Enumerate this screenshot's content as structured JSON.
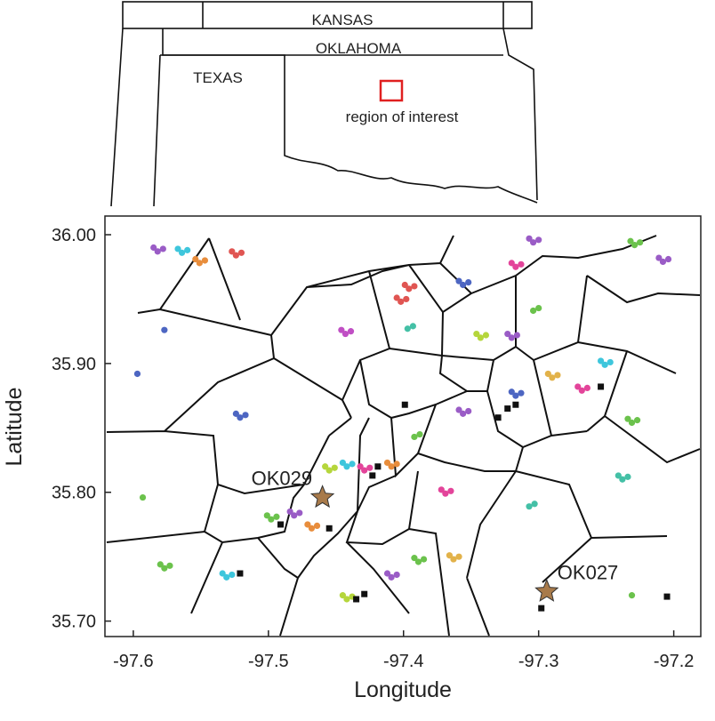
{
  "inset": {
    "labels": [
      "KANSAS",
      "OKLAHOMA",
      "TEXAS",
      "region of interest"
    ]
  },
  "chart_data": {
    "type": "scatter",
    "x_label": "Longitude",
    "y_label": "Latitude",
    "xlim": [
      -97.621,
      -97.18
    ],
    "ylim": [
      35.688,
      36.0145
    ],
    "xticks": [
      -97.6,
      -97.5,
      -97.4,
      -97.3,
      -97.2
    ],
    "yticks": [
      {
        "value": 36.0,
        "label": "36.00"
      },
      {
        "value": 35.9,
        "label": "35.90"
      },
      {
        "value": 35.8,
        "label": "35.80"
      },
      {
        "value": 35.7,
        "label": "35.70"
      }
    ],
    "series": [
      {
        "color": "#9a5cc6",
        "marker": "circle",
        "x": [
          -97.582,
          -97.578,
          -97.585,
          -97.304,
          -97.3,
          -97.307,
          -97.208,
          -97.204,
          -97.211,
          -97.32,
          -97.316,
          -97.323,
          -97.356,
          -97.352,
          -97.359,
          -97.481,
          -97.477,
          -97.484,
          -97.409,
          -97.405,
          -97.412
        ],
        "y": [
          35.987,
          35.989,
          35.99,
          35.994,
          35.996,
          35.997,
          35.979,
          35.981,
          35.982,
          35.92,
          35.922,
          35.923,
          35.861,
          35.863,
          35.864,
          35.782,
          35.784,
          35.785,
          35.734,
          35.736,
          35.737
        ]
      },
      {
        "color": "#3ec6dc",
        "marker": "circle",
        "x": [
          -97.564,
          -97.56,
          -97.567,
          -97.251,
          -97.247,
          -97.254,
          -97.442,
          -97.438,
          -97.445,
          -97.531,
          -97.527,
          -97.534
        ],
        "y": [
          35.986,
          35.988,
          35.989,
          35.899,
          35.901,
          35.902,
          35.82,
          35.822,
          35.823,
          35.734,
          35.736,
          35.737
        ]
      },
      {
        "color": "#e88d3c",
        "marker": "circle",
        "x": [
          -97.551,
          -97.547,
          -97.554,
          -97.468,
          -97.464,
          -97.471,
          -97.409,
          -97.405,
          -97.412
        ],
        "y": [
          35.978,
          35.98,
          35.981,
          35.772,
          35.774,
          35.775,
          35.82,
          35.822,
          35.823
        ]
      },
      {
        "color": "#e2b24a",
        "marker": "circle",
        "x": [
          -97.29,
          -97.286,
          -97.293,
          -97.363,
          -97.359,
          -97.366
        ],
        "y": [
          35.889,
          35.891,
          35.892,
          35.748,
          35.75,
          35.751
        ]
      },
      {
        "color": "#e05552",
        "marker": "circle",
        "x": [
          -97.524,
          -97.52,
          -97.527,
          -97.396,
          -97.392,
          -97.399,
          -97.402,
          -97.398,
          -97.405
        ],
        "y": [
          35.984,
          35.986,
          35.987,
          35.958,
          35.96,
          35.961,
          35.948,
          35.95,
          35.951
        ]
      },
      {
        "color": "#4d66c2",
        "marker": "circle",
        "x": [
          -97.356,
          -97.352,
          -97.359,
          -97.317,
          -97.313,
          -97.32,
          -97.521,
          -97.517,
          -97.524,
          -97.577,
          -97.597
        ],
        "y": [
          35.961,
          35.963,
          35.964,
          35.875,
          35.877,
          35.878,
          35.858,
          35.86,
          35.861,
          35.926,
          35.892
        ]
      },
      {
        "color": "#e3449a",
        "marker": "circle",
        "x": [
          -97.317,
          -97.313,
          -97.32,
          -97.268,
          -97.264,
          -97.271,
          -97.369,
          -97.365,
          -97.372,
          -97.429,
          -97.425,
          -97.432
        ],
        "y": [
          35.975,
          35.977,
          35.978,
          35.879,
          35.881,
          35.882,
          35.799,
          35.801,
          35.802,
          35.817,
          35.819,
          35.82
        ]
      },
      {
        "color": "#6bc24c",
        "marker": "circle",
        "x": [
          -97.229,
          -97.225,
          -97.232,
          -97.304,
          -97.3,
          -97.231,
          -97.227,
          -97.234,
          -97.392,
          -97.388,
          -97.498,
          -97.494,
          -97.501,
          -97.577,
          -97.573,
          -97.58,
          -97.389,
          -97.385,
          -97.392,
          -97.231,
          -97.593
        ],
        "y": [
          35.992,
          35.994,
          35.995,
          35.941,
          35.943,
          35.854,
          35.856,
          35.857,
          35.843,
          35.845,
          35.779,
          35.781,
          35.782,
          35.741,
          35.743,
          35.744,
          35.746,
          35.748,
          35.749,
          35.72,
          35.796
        ]
      },
      {
        "color": "#b5d63c",
        "marker": "circle",
        "x": [
          -97.343,
          -97.339,
          -97.346,
          -97.455,
          -97.451,
          -97.458,
          -97.442,
          -97.438,
          -97.445
        ],
        "y": [
          35.92,
          35.922,
          35.923,
          35.817,
          35.819,
          35.82,
          35.717,
          35.719,
          35.72
        ]
      },
      {
        "color": "#44c0a6",
        "marker": "circle",
        "x": [
          -97.397,
          -97.393,
          -97.238,
          -97.234,
          -97.241,
          -97.307,
          -97.303
        ],
        "y": [
          35.927,
          35.929,
          35.81,
          35.812,
          35.813,
          35.789,
          35.791
        ]
      },
      {
        "color": "#c04fc4",
        "marker": "circle",
        "x": [
          -97.443,
          -97.439,
          -97.446
        ],
        "y": [
          35.923,
          35.925,
          35.926
        ]
      },
      {
        "color": "#111111",
        "marker": "square",
        "x": [
          -97.323,
          -97.317,
          -97.33,
          -97.254,
          -97.419,
          -97.423,
          -97.429,
          -97.435,
          -97.399,
          -97.205,
          -97.298,
          -97.455,
          -97.491,
          -97.521
        ],
        "y": [
          35.865,
          35.868,
          35.858,
          35.882,
          35.82,
          35.813,
          35.721,
          35.717,
          35.868,
          35.719,
          35.71,
          35.772,
          35.775,
          35.737
        ]
      },
      {
        "color": "#a87a4a",
        "marker": "star",
        "labels": [
          "OK029",
          "OK027"
        ],
        "x": [
          -97.46,
          -97.294
        ],
        "y": [
          35.796,
          35.723
        ]
      }
    ]
  }
}
